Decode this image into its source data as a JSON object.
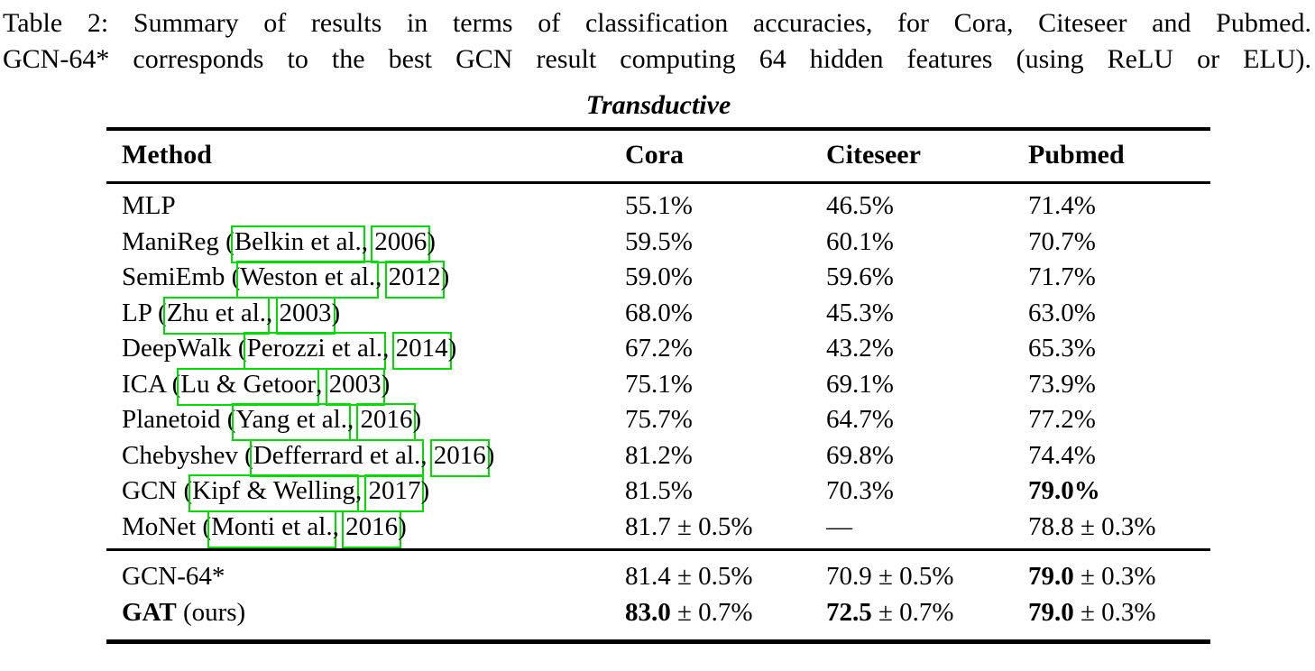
{
  "caption": {
    "line1": "Table 2: Summary of results in terms of classification accuracies, for Cora, Citeseer and Pubmed.",
    "line2": "GCN-64* corresponds to the best GCN result computing 64 hidden features (using ReLU or ELU)."
  },
  "colors": {
    "link_green": "#00dc00",
    "text": "#000000",
    "background": "#ffffff"
  },
  "table": {
    "group_title": "Transductive",
    "columns": [
      "Method",
      "Cora",
      "Citeseer",
      "Pubmed"
    ],
    "rows": [
      {
        "method": {
          "bold": "",
          "pre": "MLP",
          "author": "",
          "year": "",
          "post": ""
        },
        "cora": {
          "b": "",
          "t": "55.1%"
        },
        "citeseer": {
          "b": "",
          "t": "46.5%"
        },
        "pubmed": {
          "b": "",
          "t": "71.4%"
        }
      },
      {
        "method": {
          "bold": "",
          "pre": "ManiReg (",
          "author": "Belkin et al.",
          "year": "2006",
          "post": ")"
        },
        "cora": {
          "b": "",
          "t": "59.5%"
        },
        "citeseer": {
          "b": "",
          "t": "60.1%"
        },
        "pubmed": {
          "b": "",
          "t": "70.7%"
        }
      },
      {
        "method": {
          "bold": "",
          "pre": "SemiEmb (",
          "author": "Weston et al.",
          "year": "2012",
          "post": ")"
        },
        "cora": {
          "b": "",
          "t": "59.0%"
        },
        "citeseer": {
          "b": "",
          "t": "59.6%"
        },
        "pubmed": {
          "b": "",
          "t": "71.7%"
        }
      },
      {
        "method": {
          "bold": "",
          "pre": "LP (",
          "author": "Zhu et al.",
          "year": "2003",
          "post": ")"
        },
        "cora": {
          "b": "",
          "t": "68.0%"
        },
        "citeseer": {
          "b": "",
          "t": "45.3%"
        },
        "pubmed": {
          "b": "",
          "t": "63.0%"
        }
      },
      {
        "method": {
          "bold": "",
          "pre": "DeepWalk (",
          "author": "Perozzi et al.",
          "year": "2014",
          "post": ")"
        },
        "cora": {
          "b": "",
          "t": "67.2%"
        },
        "citeseer": {
          "b": "",
          "t": "43.2%"
        },
        "pubmed": {
          "b": "",
          "t": "65.3%"
        }
      },
      {
        "method": {
          "bold": "",
          "pre": "ICA (",
          "author": "Lu & Getoor",
          "year": "2003",
          "post": ")"
        },
        "cora": {
          "b": "",
          "t": "75.1%"
        },
        "citeseer": {
          "b": "",
          "t": "69.1%"
        },
        "pubmed": {
          "b": "",
          "t": "73.9%"
        }
      },
      {
        "method": {
          "bold": "",
          "pre": "Planetoid (",
          "author": "Yang et al.",
          "year": "2016",
          "post": ")"
        },
        "cora": {
          "b": "",
          "t": "75.7%"
        },
        "citeseer": {
          "b": "",
          "t": "64.7%"
        },
        "pubmed": {
          "b": "",
          "t": "77.2%"
        }
      },
      {
        "method": {
          "bold": "",
          "pre": "Chebyshev (",
          "author": "Defferrard et al.",
          "year": "2016",
          "post": ")"
        },
        "cora": {
          "b": "",
          "t": "81.2%"
        },
        "citeseer": {
          "b": "",
          "t": "69.8%"
        },
        "pubmed": {
          "b": "",
          "t": "74.4%"
        }
      },
      {
        "method": {
          "bold": "",
          "pre": "GCN (",
          "author": "Kipf & Welling",
          "year": "2017",
          "post": ")"
        },
        "cora": {
          "b": "",
          "t": "81.5%"
        },
        "citeseer": {
          "b": "",
          "t": "70.3%"
        },
        "pubmed": {
          "b": "79.0%",
          "t": ""
        }
      },
      {
        "method": {
          "bold": "",
          "pre": "MoNet (",
          "author": "Monti et al.",
          "year": "2016",
          "post": ")"
        },
        "cora": {
          "b": "",
          "t": "81.7 ± 0.5%"
        },
        "citeseer": {
          "b": "",
          "t": "—"
        },
        "pubmed": {
          "b": "",
          "t": "78.8 ± 0.3%"
        }
      }
    ],
    "bottom_rows": [
      {
        "method": {
          "bold": "",
          "pre": "GCN-64*",
          "author": "",
          "year": "",
          "post": ""
        },
        "cora": {
          "b": "",
          "t": "81.4 ± 0.5%"
        },
        "citeseer": {
          "b": "",
          "t": "70.9 ± 0.5%"
        },
        "pubmed": {
          "b": "79.0",
          "t": " ± 0.3%"
        }
      },
      {
        "method": {
          "bold": "GAT",
          "pre": " (ours)",
          "author": "",
          "year": "",
          "post": ""
        },
        "cora": {
          "b": "83.0",
          "t": " ± 0.7%"
        },
        "citeseer": {
          "b": "72.5",
          "t": " ± 0.7%"
        },
        "pubmed": {
          "b": "79.0",
          "t": " ± 0.3%"
        }
      }
    ]
  }
}
